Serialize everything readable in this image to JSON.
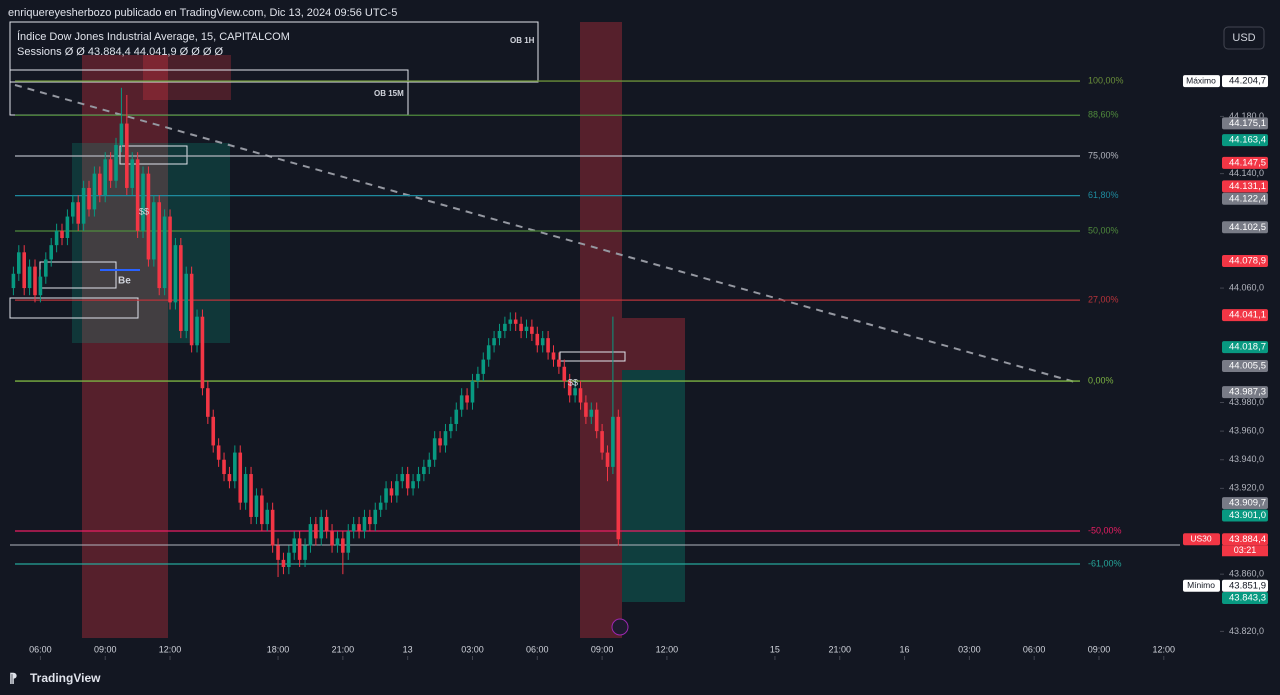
{
  "header": {
    "text": "enriquereyesherbozo publicado en TradingView.com, Dic 13, 2024 09:56 UTC-5"
  },
  "footer": {
    "brand": "TradingView"
  },
  "currency": "USD",
  "chart_data": {
    "type": "candlestick",
    "title": "Índice Dow Jones Industrial Average, 15, CAPITALCOM",
    "subtitle": "Sessions Ø Ø 43.884,4 44.041,9 Ø Ø Ø Ø",
    "up_color": "#089981",
    "down_color": "#f23645",
    "open": [
      44060,
      44070,
      44085,
      44060,
      44075,
      44055,
      44068,
      44080,
      44090,
      44100,
      44095,
      44110,
      44120,
      44105,
      44130,
      44115,
      44140,
      44125,
      44150,
      44135,
      44160,
      44175,
      44130,
      44150,
      44100,
      44140,
      44080,
      44120,
      44060,
      44110,
      44050,
      44090,
      44030,
      44070,
      44020,
      44040,
      43990,
      43970,
      43950,
      43940,
      43930,
      43925,
      43945,
      43910,
      43930,
      43900,
      43915,
      43895,
      43905,
      43880,
      43870,
      43865,
      43875,
      43885,
      43870,
      43880,
      43895,
      43885,
      43900,
      43890,
      43880,
      43885,
      43875,
      43890,
      43895,
      43890,
      43900,
      43895,
      43905,
      43910,
      43920,
      43915,
      43925,
      43930,
      43920,
      43925,
      43930,
      43935,
      43940,
      43955,
      43950,
      43960,
      43965,
      43975,
      43985,
      43980,
      43995,
      44000,
      44010,
      44020,
      44025,
      44030,
      44035,
      44038,
      44035,
      44030,
      44033,
      44028,
      44020,
      44025,
      44015,
      44010,
      44005,
      43995,
      43985,
      43990,
      43980,
      43970,
      43975,
      43960,
      43945,
      43935,
      43970
    ],
    "high": [
      44075,
      44090,
      44090,
      44080,
      44080,
      44073,
      44085,
      44095,
      44105,
      44105,
      44115,
      44125,
      44125,
      44135,
      44135,
      44145,
      44145,
      44155,
      44155,
      44165,
      44200,
      44195,
      44155,
      44155,
      44145,
      44145,
      44125,
      44125,
      44115,
      44115,
      44095,
      44095,
      44075,
      44075,
      44045,
      44045,
      43995,
      43975,
      43955,
      43945,
      43935,
      43950,
      43950,
      43935,
      43935,
      43920,
      43920,
      43910,
      43910,
      43885,
      43875,
      43880,
      43890,
      43890,
      43885,
      43900,
      43900,
      43905,
      43905,
      43895,
      43890,
      43890,
      43895,
      43900,
      43900,
      43905,
      43905,
      43910,
      43915,
      43925,
      43925,
      43930,
      43935,
      43935,
      43930,
      43935,
      43940,
      43945,
      43960,
      43960,
      43965,
      43970,
      43980,
      43990,
      43990,
      44000,
      44005,
      44015,
      44025,
      44030,
      44035,
      44040,
      44043,
      44043,
      44040,
      44038,
      44038,
      44033,
      44030,
      44030,
      44020,
      44015,
      44010,
      44000,
      43995,
      43995,
      43985,
      43980,
      43980,
      43965,
      43950,
      44040,
      43975
    ],
    "low": [
      44055,
      44065,
      44055,
      44055,
      44050,
      44050,
      44063,
      44075,
      44085,
      44090,
      44090,
      44105,
      44100,
      44100,
      44110,
      44110,
      44120,
      44120,
      44130,
      44130,
      44155,
      44125,
      44125,
      44095,
      44095,
      44075,
      44075,
      44055,
      44055,
      44045,
      44045,
      44025,
      44025,
      44015,
      44015,
      43985,
      43965,
      43945,
      43935,
      43925,
      43920,
      43920,
      43905,
      43905,
      43895,
      43895,
      43890,
      43890,
      43875,
      43858,
      43860,
      43860,
      43870,
      43865,
      43865,
      43875,
      43880,
      43880,
      43885,
      43875,
      43875,
      43860,
      43870,
      43885,
      43885,
      43885,
      43890,
      43890,
      43900,
      43905,
      43910,
      43910,
      43920,
      43915,
      43915,
      43920,
      43925,
      43930,
      43935,
      43945,
      43945,
      43955,
      43960,
      43970,
      43975,
      43975,
      43990,
      43995,
      44005,
      44015,
      44020,
      44025,
      44030,
      44030,
      44025,
      44025,
      44023,
      44015,
      44015,
      44010,
      44005,
      44000,
      43990,
      43980,
      43980,
      43975,
      43965,
      43965,
      43955,
      43940,
      43925,
      43930,
      43880
    ],
    "close": [
      44070,
      44085,
      44060,
      44075,
      44055,
      44068,
      44080,
      44090,
      44100,
      44095,
      44110,
      44120,
      44105,
      44130,
      44115,
      44140,
      44125,
      44150,
      44135,
      44160,
      44175,
      44130,
      44150,
      44100,
      44140,
      44080,
      44120,
      44060,
      44110,
      44050,
      44090,
      44030,
      44070,
      44020,
      44040,
      43990,
      43970,
      43950,
      43940,
      43930,
      43925,
      43945,
      43910,
      43930,
      43900,
      43915,
      43895,
      43905,
      43880,
      43870,
      43865,
      43875,
      43885,
      43870,
      43880,
      43895,
      43885,
      43900,
      43890,
      43880,
      43885,
      43875,
      43890,
      43895,
      43890,
      43900,
      43895,
      43905,
      43910,
      43920,
      43915,
      43925,
      43930,
      43920,
      43925,
      43930,
      43935,
      43940,
      43955,
      43950,
      43960,
      43965,
      43975,
      43985,
      43980,
      43995,
      44000,
      44010,
      44020,
      44025,
      44030,
      44035,
      44038,
      44035,
      44030,
      44033,
      44028,
      44020,
      44025,
      44015,
      44010,
      44005,
      43995,
      43985,
      43990,
      43980,
      43970,
      43975,
      43960,
      43945,
      43935,
      43970,
      43884.4
    ],
    "xlim": [
      -1,
      216
    ],
    "xticks": [
      {
        "value": 5,
        "label": "06:00"
      },
      {
        "value": 17,
        "label": "09:00"
      },
      {
        "value": 29,
        "label": "12:00"
      },
      {
        "value": 49,
        "label": "18:00"
      },
      {
        "value": 61,
        "label": "21:00"
      },
      {
        "value": 73,
        "label": "13"
      },
      {
        "value": 85,
        "label": "03:00"
      },
      {
        "value": 97,
        "label": "06:00"
      },
      {
        "value": 109,
        "label": "09:00"
      },
      {
        "value": 121,
        "label": "12:00"
      },
      {
        "value": 141,
        "label": "15"
      },
      {
        "value": 153,
        "label": "21:00"
      },
      {
        "value": 165,
        "label": "16"
      },
      {
        "value": 177,
        "label": "03:00"
      },
      {
        "value": 189,
        "label": "06:00"
      },
      {
        "value": 201,
        "label": "09:00"
      },
      {
        "value": 213,
        "label": "12:00"
      }
    ],
    "ylim": [
      43800,
      44246
    ],
    "yticks": [
      {
        "value": 44180,
        "label": "44.180,0"
      },
      {
        "value": 44140,
        "label": "44.140,0"
      },
      {
        "value": 44060,
        "label": "44.060,0"
      },
      {
        "value": 43980,
        "label": "43.980,0"
      },
      {
        "value": 43960,
        "label": "43.960,0"
      },
      {
        "value": 43940,
        "label": "43.940,0"
      },
      {
        "value": 43920,
        "label": "43.920,0"
      },
      {
        "value": 43860,
        "label": "43.860,0"
      },
      {
        "value": 43820,
        "label": "43.820,0"
      }
    ],
    "fib_levels": [
      {
        "value": 44204.7,
        "label": "100,00%",
        "color": "#6a8f3a"
      },
      {
        "value": 44180.8,
        "label": "88,60%",
        "color": "#4f8a3c"
      },
      {
        "value": 44152.3,
        "label": "75,00%",
        "color": "#b2b5be"
      },
      {
        "value": 44124.6,
        "label": "61,80%",
        "color": "#1e8a9e"
      },
      {
        "value": 44099.9,
        "label": "50,00%",
        "color": "#4f8a3c"
      },
      {
        "value": 44051.6,
        "label": "27,00%",
        "color": "#b8333a"
      },
      {
        "value": 43995.0,
        "label": "0,00%",
        "color": "#7cb342"
      },
      {
        "value": 43890.2,
        "label": "-50,00%",
        "color": "#e91e63"
      },
      {
        "value": 43867.1,
        "label": "-61,00%",
        "color": "#26a69a"
      }
    ],
    "price_labels": [
      {
        "value": 44204.7,
        "label": "44.204,7",
        "color": "#ffffff",
        "tag": "Máximo"
      },
      {
        "value": 44175.1,
        "label": "44.175,1",
        "color": "#787b86"
      },
      {
        "value": 44163.4,
        "label": "44.163,4",
        "color": "#089981"
      },
      {
        "value": 44147.5,
        "label": "44.147,5",
        "color": "#f23645"
      },
      {
        "value": 44131.1,
        "label": "44.131,1",
        "color": "#f23645"
      },
      {
        "value": 44122.4,
        "label": "44.122,4",
        "color": "#787b86"
      },
      {
        "value": 44102.5,
        "label": "44.102,5",
        "color": "#787b86"
      },
      {
        "value": 44078.9,
        "label": "44.078,9",
        "color": "#f23645"
      },
      {
        "value": 44041.1,
        "label": "44.041,1",
        "color": "#f23645"
      },
      {
        "value": 44018.7,
        "label": "44.018,7",
        "color": "#089981"
      },
      {
        "value": 44005.5,
        "label": "44.005,5",
        "color": "#787b86"
      },
      {
        "value": 43987.3,
        "label": "43.987,3",
        "color": "#787b86"
      },
      {
        "value": 43909.7,
        "label": "43.909,7",
        "color": "#787b86"
      },
      {
        "value": 43901.0,
        "label": "43.901,0",
        "color": "#089981"
      },
      {
        "value": 43884.4,
        "label": "43.884,4",
        "color": "#f23645",
        "tag": "US30"
      },
      {
        "value": 43851.9,
        "label": "43.851,9",
        "color": "#ffffff",
        "tag": "Mínimo"
      },
      {
        "value": 43843.3,
        "label": "43.843,3",
        "color": "#089981"
      }
    ],
    "countdown": "03:21",
    "annotations": [
      "OB 1H",
      "OB 15M",
      "Be",
      "$$",
      "$$"
    ]
  }
}
